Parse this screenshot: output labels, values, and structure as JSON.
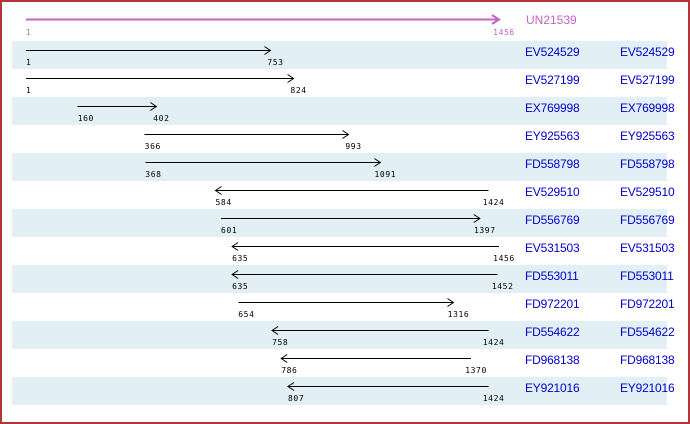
{
  "colors": {
    "border": "#b23338",
    "band": "#e2f0f5",
    "accession": "#0000cc",
    "reference": "#c464c4",
    "arrow": "#000000"
  },
  "chart_data": {
    "type": "bar",
    "subtype": "sequence-alignment-interval-arrows",
    "title": "",
    "x_range": [
      1,
      1456
    ],
    "legend": "none",
    "grid": false,
    "reference": {
      "label": "UN21539",
      "start": 1,
      "end": 1456,
      "direction": "right"
    },
    "alignments": [
      {
        "label": "EV524529",
        "start": 1,
        "end": 753,
        "direction": "right"
      },
      {
        "label": "EV527199",
        "start": 1,
        "end": 824,
        "direction": "right"
      },
      {
        "label": "EX769998",
        "start": 160,
        "end": 402,
        "direction": "right"
      },
      {
        "label": "EY925563",
        "start": 366,
        "end": 993,
        "direction": "right"
      },
      {
        "label": "FD558798",
        "start": 368,
        "end": 1091,
        "direction": "right"
      },
      {
        "label": "EV529510",
        "start": 584,
        "end": 1424,
        "direction": "left"
      },
      {
        "label": "FD556769",
        "start": 601,
        "end": 1397,
        "direction": "right"
      },
      {
        "label": "EV531503",
        "start": 635,
        "end": 1456,
        "direction": "left"
      },
      {
        "label": "FD553011",
        "start": 635,
        "end": 1452,
        "direction": "left"
      },
      {
        "label": "FD972201",
        "start": 654,
        "end": 1316,
        "direction": "right"
      },
      {
        "label": "FD554622",
        "start": 758,
        "end": 1424,
        "direction": "left"
      },
      {
        "label": "FD968138",
        "start": 786,
        "end": 1370,
        "direction": "left"
      },
      {
        "label": "EY921016",
        "start": 807,
        "end": 1424,
        "direction": "left"
      }
    ]
  }
}
